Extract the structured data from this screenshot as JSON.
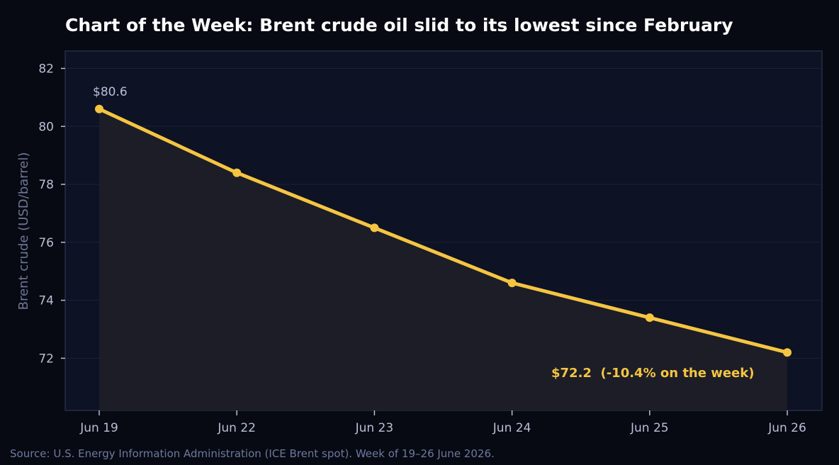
{
  "colors": {
    "background": "#070a12",
    "plot_background": "#0d1224",
    "plot_border": "#262c48",
    "grid": "#1c2238",
    "line": "#f5c542",
    "area_fill": "#1e1f27",
    "tick_text": "#b9bfd6",
    "axis_label": "#6e7596",
    "source_text": "#6e78a0"
  },
  "chart_data": {
    "type": "line",
    "title": "Chart of the Week: Brent crude oil slid to its lowest since February",
    "xlabel": "",
    "ylabel": "Brent crude (USD/barrel)",
    "categories": [
      "Jun 19",
      "Jun 22",
      "Jun 23",
      "Jun 24",
      "Jun 25",
      "Jun 26"
    ],
    "series": [
      {
        "values": [
          80.6,
          78.4,
          76.5,
          74.6,
          73.4,
          72.2
        ]
      }
    ],
    "yticks": [
      72,
      74,
      76,
      78,
      80,
      82
    ],
    "ylim": [
      70.2,
      82.6
    ],
    "grid": true,
    "area_fill": true,
    "annotations": {
      "start": "$80.6",
      "end": "$72.2  (-10.4% on the week)"
    }
  },
  "source": "Source: U.S. Energy Information Administration (ICE Brent spot). Week of 19–26 June 2026."
}
